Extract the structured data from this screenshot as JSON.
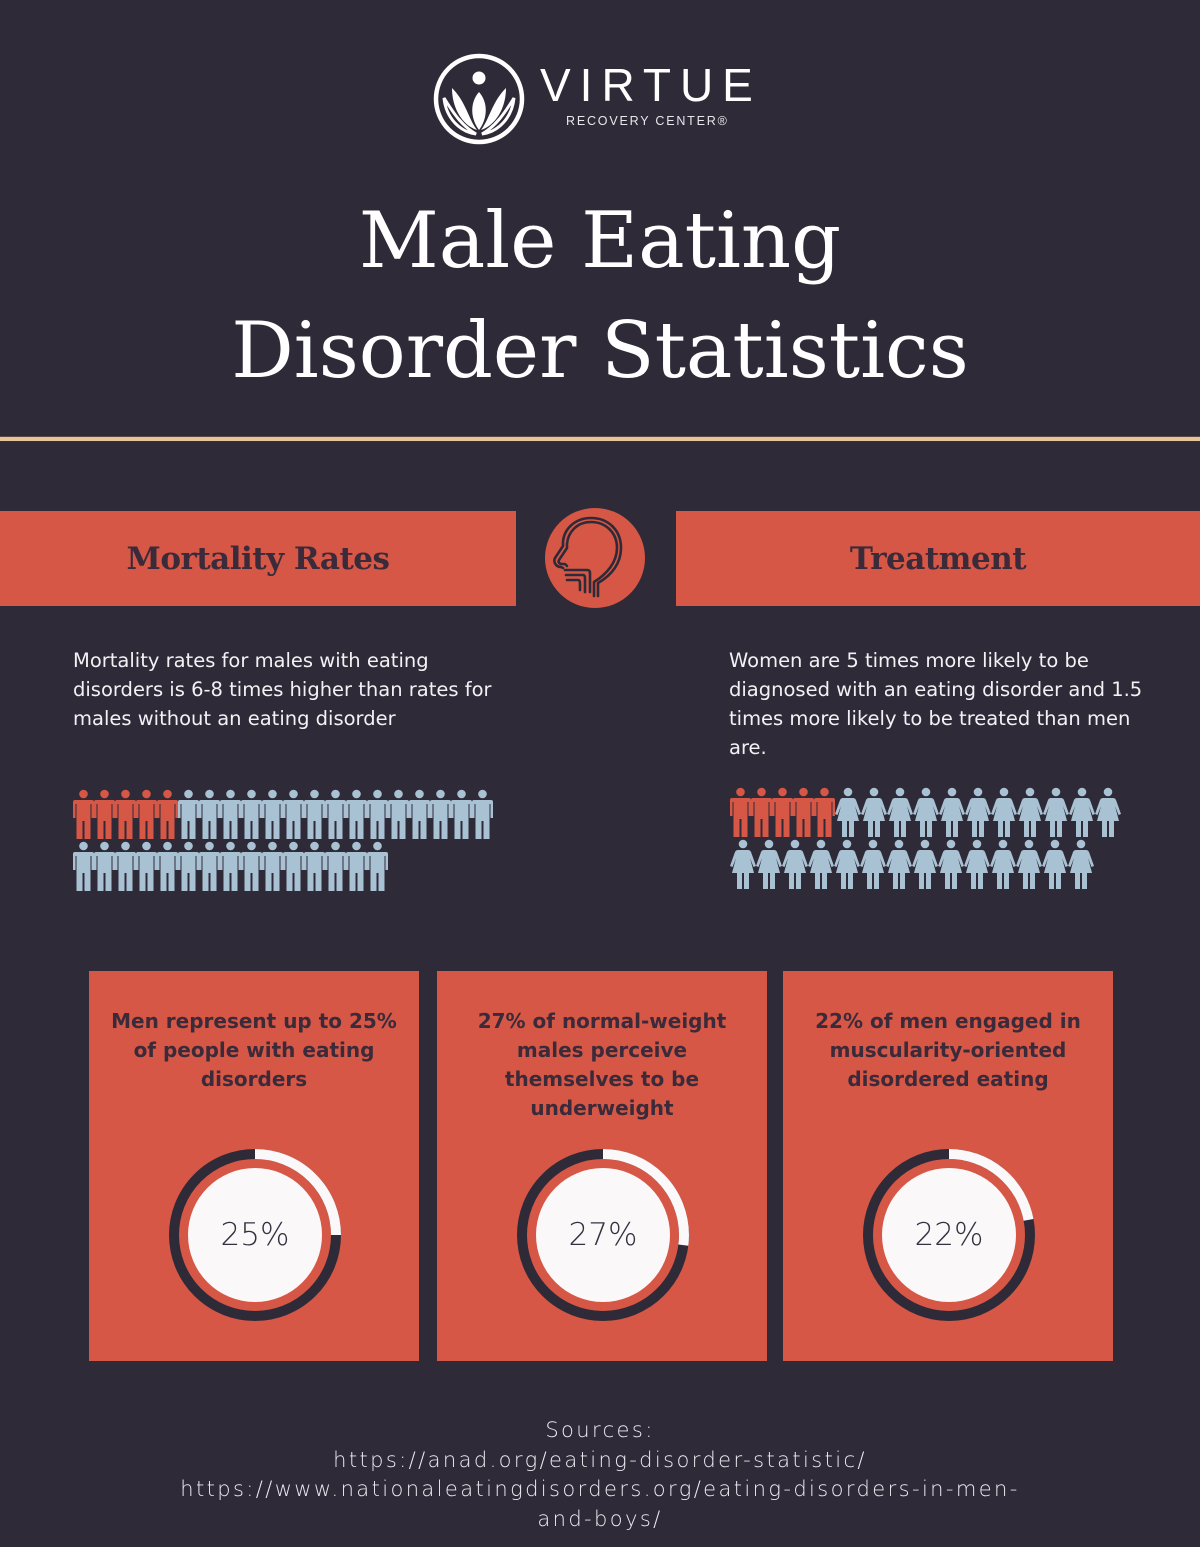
{
  "brand": {
    "name": "VIRTUE",
    "tagline": "RECOVERY CENTER®",
    "logo_icon": "lotus-person-icon"
  },
  "title": {
    "line1": "Male Eating",
    "line2": "Disorder Statistics"
  },
  "colors": {
    "background": "#2f2a38",
    "accent_red": "#d65745",
    "divider_tan": "#e9c39a",
    "pictogram_blue": "#a9c2d3",
    "dark_text": "#3a2a3a"
  },
  "sections": {
    "center_icon": "human-head-throat-icon",
    "left": {
      "heading": "Mortality Rates",
      "text": "Mortality rates for males with eating disorders is 6-8 times higher than rates for males without an eating disorder",
      "pictogram": {
        "rows": [
          {
            "red_male": 5,
            "blue_male": 15
          },
          {
            "red_male": 0,
            "blue_male": 15
          }
        ]
      }
    },
    "right": {
      "heading": "Treatment",
      "text": "Women are 5 times more likely to be diagnosed with an eating disorder and 1.5 times more likely to be treated than men are.",
      "pictogram": {
        "rows": [
          {
            "red_male": 5,
            "blue_female": 11
          },
          {
            "red_male": 0,
            "blue_female": 14
          }
        ]
      }
    }
  },
  "cards": [
    {
      "text": "Men represent up to 25% of people with eating disorders",
      "value_label": "25%",
      "percent": 25
    },
    {
      "text": "27% of normal-weight males perceive themselves to be underweight",
      "value_label": "27%",
      "percent": 27
    },
    {
      "text": "22% of men engaged in muscularity-oriented disordered eating",
      "value_label": "22%",
      "percent": 22
    }
  ],
  "sources": {
    "label": "Sources:",
    "lines": [
      "https://anad.org/eating-disorder-statistic/",
      "https://www.nationaleatingdisorders.org/eating-disorders-in-men-",
      "and-boys/"
    ]
  }
}
